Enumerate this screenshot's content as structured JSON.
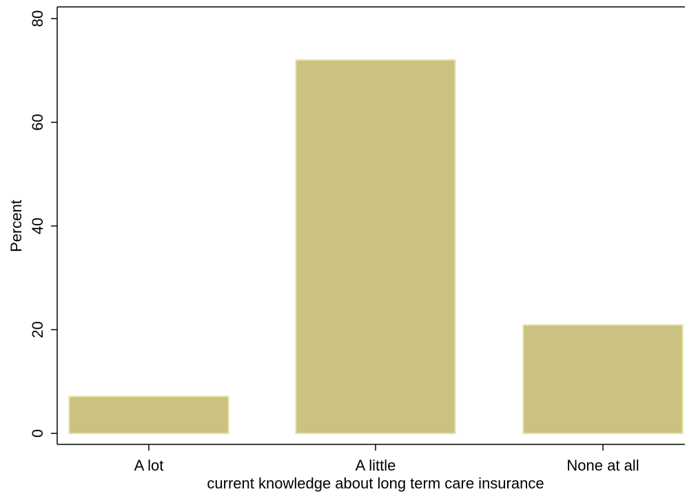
{
  "chart_data": {
    "type": "bar",
    "categories": [
      "A lot",
      "A little",
      "None at all"
    ],
    "values": [
      7.1,
      72.0,
      20.9
    ],
    "xlabel": "current knowledge about long term care insurance",
    "ylabel": "Percent",
    "ylim": [
      0,
      80
    ],
    "yticks": [
      0,
      20,
      40,
      60,
      80
    ],
    "grid": false,
    "colors": {
      "bar_fill": "#cbc282",
      "bar_stroke": "#e5df9f",
      "axis": "#000000",
      "background": "#ffffff"
    }
  }
}
